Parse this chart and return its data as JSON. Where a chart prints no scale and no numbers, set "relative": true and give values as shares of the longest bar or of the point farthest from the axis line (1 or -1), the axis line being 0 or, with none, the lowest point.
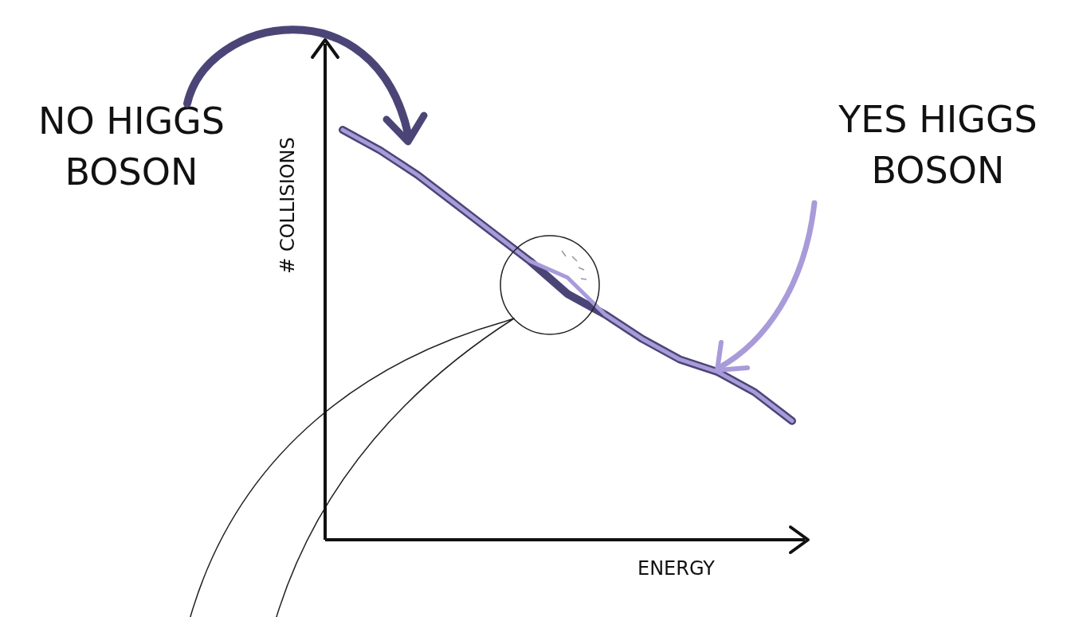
{
  "chart_data": {
    "type": "line",
    "relative": true,
    "xlabel": "ENERGY",
    "ylabel": "# COLLISIONS",
    "legend": false,
    "marker": "none",
    "categories": [
      null,
      null,
      null,
      null,
      null,
      null,
      null,
      null,
      null,
      null,
      null,
      null,
      null
    ],
    "series": [
      {
        "name": "NO HIGGS BOSON",
        "color": "#4b4577",
        "values": [
          1.0,
          0.95,
          0.89,
          0.82,
          0.75,
          0.68,
          0.6,
          0.55,
          0.49,
          0.44,
          0.41,
          0.36,
          0.29
        ]
      },
      {
        "name": "YES HIGGS BOSON",
        "color": "#a99bd9",
        "values": [
          1.0,
          0.95,
          0.89,
          0.82,
          0.75,
          0.68,
          0.64,
          0.55,
          0.49,
          0.44,
          0.41,
          0.36,
          0.29
        ]
      }
    ]
  }
}
